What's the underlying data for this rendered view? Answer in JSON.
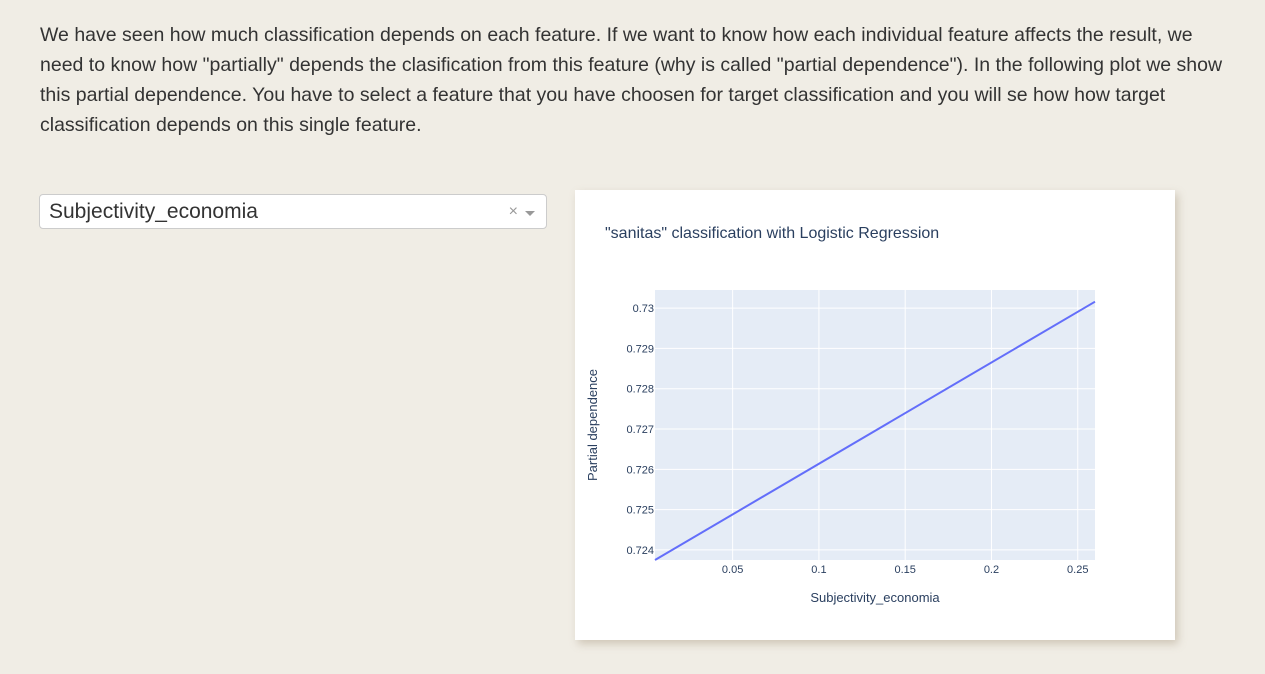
{
  "intro_text": "We have seen how much classification depends on each feature. If we want to know how each individual feature affects the result, we need to know how \"partially\" depends the clasification from this feature (why is called \"partial dependence\"). In the following plot we show this partial dependence. You have to select a feature that you have choosen for target classification and you will se how how target classification depends on this single feature.",
  "feature_select": {
    "value": "Subjectivity_economia",
    "clear_symbol": "×"
  },
  "chart_data": {
    "type": "line",
    "title": "\"sanitas\" classification with Logistic Regression",
    "xlabel": "Subjectivity_economia",
    "ylabel": "Partial dependence",
    "xlim": [
      0.005,
      0.26
    ],
    "ylim": [
      0.72375,
      0.73045
    ],
    "x_ticks": [
      0.05,
      0.1,
      0.15,
      0.2,
      0.25
    ],
    "x_tick_labels": [
      "0.05",
      "0.1",
      "0.15",
      "0.2",
      "0.25"
    ],
    "y_ticks": [
      0.724,
      0.725,
      0.726,
      0.727,
      0.728,
      0.729,
      0.73
    ],
    "y_tick_labels": [
      "0.724",
      "0.725",
      "0.726",
      "0.727",
      "0.728",
      "0.729",
      "0.73"
    ],
    "grid": true,
    "series": [
      {
        "color": "#636efa",
        "x": [
          0.005,
          0.26
        ],
        "y": [
          0.72375,
          0.73016
        ]
      }
    ],
    "plot_bg": "#e5ecf6"
  }
}
